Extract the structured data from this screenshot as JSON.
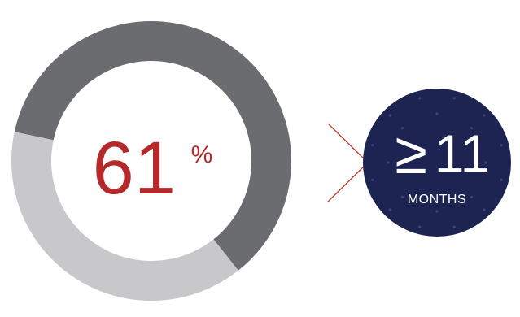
{
  "chart_data": {
    "type": "pie",
    "style": "donut",
    "slices": [
      {
        "value": 61,
        "color": "#6b6c70"
      },
      {
        "value": 39,
        "color": "#c8c8ca"
      }
    ],
    "center_label": {
      "number": "61",
      "unit": "%",
      "color": "#b42a2a"
    }
  },
  "badge": {
    "symbol": "≥",
    "number": "11",
    "unit": "MONTHS",
    "fill": "#1d2451",
    "text_color": "#ffffff"
  },
  "pointer_color": "#c0392b"
}
